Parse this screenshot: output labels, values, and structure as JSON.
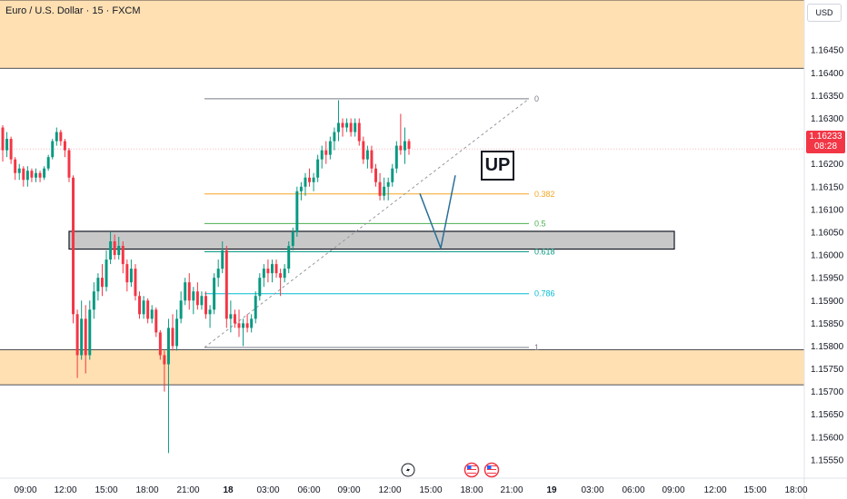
{
  "header": {
    "symbol": "Euro / U.S. Dollar · 15 · FXCM",
    "currency": "USD"
  },
  "last_price": {
    "value": "1.16233",
    "countdown": "08:28",
    "color": "#f23645"
  },
  "annotation_label": "UP",
  "event_icons": [
    "lightning-icon",
    "us-flag-icon",
    "us-flag-icon"
  ],
  "colors": {
    "up": "#089981",
    "down": "#f23645",
    "zone": "#ffe0b2",
    "fib_0382": "#f5a623",
    "fib_05": "#4caf50",
    "fib_0618": "#089981",
    "fib_0786": "#00bcd4",
    "fib_edge": "#787b86",
    "arrow": "#2a6f97"
  },
  "chart_data": {
    "type": "candlestick",
    "title": "Euro / U.S. Dollar · 15 · FXCM",
    "ylim": [
      1.1551,
      1.1656
    ],
    "y_ticks": [
      "1.16450",
      "1.16400",
      "1.16350",
      "1.16300",
      "1.16250",
      "1.16200",
      "1.16150",
      "1.16100",
      "1.16050",
      "1.16000",
      "1.15950",
      "1.15900",
      "1.15850",
      "1.15800",
      "1.15750",
      "1.15700",
      "1.15650",
      "1.15600",
      "1.15550"
    ],
    "x_ticks": [
      {
        "label": "09:00",
        "bold": false
      },
      {
        "label": "12:00",
        "bold": false
      },
      {
        "label": "15:00",
        "bold": false
      },
      {
        "label": "18:00",
        "bold": false
      },
      {
        "label": "21:00",
        "bold": false
      },
      {
        "label": "18",
        "bold": true
      },
      {
        "label": "03:00",
        "bold": false
      },
      {
        "label": "06:00",
        "bold": false
      },
      {
        "label": "09:00",
        "bold": false
      },
      {
        "label": "12:00",
        "bold": false
      },
      {
        "label": "15:00",
        "bold": false
      },
      {
        "label": "18:00",
        "bold": false
      },
      {
        "label": "21:00",
        "bold": false
      },
      {
        "label": "19",
        "bold": true
      },
      {
        "label": "03:00",
        "bold": false
      },
      {
        "label": "06:00",
        "bold": false
      },
      {
        "label": "09:00",
        "bold": false
      },
      {
        "label": "12:00",
        "bold": false
      },
      {
        "label": "15:00",
        "bold": false
      },
      {
        "label": "18:00",
        "bold": false
      }
    ],
    "zones": [
      {
        "name": "supply-zone",
        "y0": 1.1641,
        "y1": 1.1656
      },
      {
        "name": "demand-zone",
        "y0": 1.15715,
        "y1": 1.15792
      },
      {
        "name": "gray-zone",
        "y0": 1.16013,
        "y1": 1.16052
      }
    ],
    "fib_levels": [
      {
        "label": "0",
        "value": 1.16343
      },
      {
        "label": "0.382",
        "value": 1.16134
      },
      {
        "label": "0.5",
        "value": 1.16069
      },
      {
        "label": "0.618",
        "value": 1.16007
      },
      {
        "label": "0.786",
        "value": 1.15915
      },
      {
        "label": "1",
        "value": 1.15797
      }
    ],
    "projection_path": [
      [
        1.16135,
        0
      ],
      [
        1.16015,
        1
      ],
      [
        1.16175,
        2
      ]
    ],
    "candles": [
      [
        1.1628,
        1.16285,
        1.16205,
        1.1623
      ],
      [
        1.1623,
        1.1627,
        1.16215,
        1.16255
      ],
      [
        1.16255,
        1.1626,
        1.162,
        1.1621
      ],
      [
        1.1621,
        1.16215,
        1.16165,
        1.1618
      ],
      [
        1.1618,
        1.162,
        1.16165,
        1.1619
      ],
      [
        1.1619,
        1.16195,
        1.1615,
        1.16165
      ],
      [
        1.16165,
        1.16195,
        1.1615,
        1.16185
      ],
      [
        1.16185,
        1.1619,
        1.1616,
        1.1617
      ],
      [
        1.1617,
        1.1619,
        1.1616,
        1.1618
      ],
      [
        1.1618,
        1.16185,
        1.1616,
        1.1617
      ],
      [
        1.1617,
        1.16195,
        1.16165,
        1.1619
      ],
      [
        1.1619,
        1.1622,
        1.16185,
        1.16215
      ],
      [
        1.16215,
        1.16255,
        1.1621,
        1.1625
      ],
      [
        1.1625,
        1.1628,
        1.1624,
        1.1627
      ],
      [
        1.1627,
        1.16275,
        1.1624,
        1.1625
      ],
      [
        1.1625,
        1.16255,
        1.16215,
        1.1623
      ],
      [
        1.1623,
        1.16235,
        1.1616,
        1.1617
      ],
      [
        1.1617,
        1.16175,
        1.1585,
        1.1587
      ],
      [
        1.1587,
        1.1588,
        1.1573,
        1.1578
      ],
      [
        1.1578,
        1.159,
        1.1577,
        1.1586
      ],
      [
        1.1586,
        1.1589,
        1.1574,
        1.1578
      ],
      [
        1.1578,
        1.159,
        1.1577,
        1.1588
      ],
      [
        1.1588,
        1.1594,
        1.1586,
        1.1592
      ],
      [
        1.1592,
        1.1596,
        1.159,
        1.1595
      ],
      [
        1.1595,
        1.1598,
        1.1591,
        1.1593
      ],
      [
        1.1593,
        1.1601,
        1.1592,
        1.1599
      ],
      [
        1.1599,
        1.1605,
        1.1598,
        1.1603
      ],
      [
        1.1603,
        1.16045,
        1.1599,
        1.16
      ],
      [
        1.16,
        1.1604,
        1.1599,
        1.1602
      ],
      [
        1.1602,
        1.1603,
        1.1596,
        1.1598
      ],
      [
        1.1598,
        1.1599,
        1.1592,
        1.1594
      ],
      [
        1.1594,
        1.1599,
        1.1593,
        1.1597
      ],
      [
        1.1597,
        1.1598,
        1.159,
        1.1591
      ],
      [
        1.1591,
        1.1592,
        1.1586,
        1.1587
      ],
      [
        1.1587,
        1.1591,
        1.1586,
        1.159
      ],
      [
        1.159,
        1.15905,
        1.1585,
        1.1586
      ],
      [
        1.1586,
        1.1589,
        1.1585,
        1.1588
      ],
      [
        1.1588,
        1.15885,
        1.1582,
        1.1583
      ],
      [
        1.1583,
        1.15835,
        1.1577,
        1.1578
      ],
      [
        1.1578,
        1.1579,
        1.157,
        1.1576
      ],
      [
        1.1576,
        1.1586,
        1.15565,
        1.1584
      ],
      [
        1.1584,
        1.1587,
        1.1579,
        1.158
      ],
      [
        1.158,
        1.1588,
        1.1579,
        1.1586
      ],
      [
        1.1586,
        1.1592,
        1.1585,
        1.159
      ],
      [
        1.159,
        1.1595,
        1.1589,
        1.1594
      ],
      [
        1.1594,
        1.1596,
        1.1588,
        1.159
      ],
      [
        1.159,
        1.1593,
        1.1587,
        1.1592
      ],
      [
        1.1592,
        1.1594,
        1.1588,
        1.1589
      ],
      [
        1.1589,
        1.1592,
        1.1588,
        1.1591
      ],
      [
        1.1591,
        1.1592,
        1.1586,
        1.1587
      ],
      [
        1.1587,
        1.1589,
        1.1584,
        1.1588
      ],
      [
        1.1588,
        1.1596,
        1.1587,
        1.1595
      ],
      [
        1.1595,
        1.1599,
        1.1593,
        1.1597
      ],
      [
        1.1597,
        1.1603,
        1.1596,
        1.1601
      ],
      [
        1.1601,
        1.1602,
        1.1584,
        1.1586
      ],
      [
        1.1586,
        1.159,
        1.1583,
        1.1587
      ],
      [
        1.1587,
        1.1588,
        1.1584,
        1.1585
      ],
      [
        1.1585,
        1.1588,
        1.1582,
        1.1584
      ],
      [
        1.1584,
        1.1586,
        1.158,
        1.1585
      ],
      [
        1.1585,
        1.1587,
        1.1583,
        1.1584
      ],
      [
        1.1584,
        1.1587,
        1.1583,
        1.1586
      ],
      [
        1.1586,
        1.1592,
        1.1585,
        1.1591
      ],
      [
        1.1591,
        1.1596,
        1.159,
        1.1595
      ],
      [
        1.1595,
        1.1598,
        1.1593,
        1.1597
      ],
      [
        1.1597,
        1.1599,
        1.1594,
        1.1596
      ],
      [
        1.1596,
        1.1599,
        1.1594,
        1.1598
      ],
      [
        1.1598,
        1.1599,
        1.1595,
        1.1596
      ],
      [
        1.1596,
        1.1597,
        1.1591,
        1.1595
      ],
      [
        1.1595,
        1.1598,
        1.1594,
        1.1597
      ],
      [
        1.1597,
        1.1603,
        1.1596,
        1.1602
      ],
      [
        1.1602,
        1.1606,
        1.1601,
        1.1605
      ],
      [
        1.1605,
        1.1615,
        1.1604,
        1.1614
      ],
      [
        1.1614,
        1.1616,
        1.1612,
        1.1615
      ],
      [
        1.1615,
        1.1618,
        1.1613,
        1.1617
      ],
      [
        1.1617,
        1.1619,
        1.1615,
        1.1616
      ],
      [
        1.1616,
        1.1618,
        1.1614,
        1.1617
      ],
      [
        1.1617,
        1.1622,
        1.1616,
        1.1621
      ],
      [
        1.1621,
        1.1624,
        1.1619,
        1.1623
      ],
      [
        1.1623,
        1.1625,
        1.162,
        1.1622
      ],
      [
        1.1622,
        1.1626,
        1.1621,
        1.1625
      ],
      [
        1.1625,
        1.1628,
        1.1623,
        1.1627
      ],
      [
        1.1627,
        1.1634,
        1.1625,
        1.1629
      ],
      [
        1.1629,
        1.163,
        1.1626,
        1.1628
      ],
      [
        1.1628,
        1.163,
        1.1627,
        1.1629
      ],
      [
        1.1629,
        1.163,
        1.1626,
        1.1627
      ],
      [
        1.1627,
        1.163,
        1.1626,
        1.1629
      ],
      [
        1.1629,
        1.163,
        1.1624,
        1.1625
      ],
      [
        1.1625,
        1.1626,
        1.162,
        1.1621
      ],
      [
        1.1621,
        1.1624,
        1.1619,
        1.1623
      ],
      [
        1.1623,
        1.1624,
        1.1618,
        1.1619
      ],
      [
        1.1619,
        1.162,
        1.1615,
        1.1616
      ],
      [
        1.1616,
        1.1618,
        1.1612,
        1.1613
      ],
      [
        1.1613,
        1.1617,
        1.1612,
        1.1615
      ],
      [
        1.1615,
        1.1617,
        1.1612,
        1.1616
      ],
      [
        1.1616,
        1.162,
        1.1615,
        1.1619
      ],
      [
        1.1619,
        1.1625,
        1.1618,
        1.1624
      ],
      [
        1.1624,
        1.1631,
        1.1622,
        1.1623
      ],
      [
        1.1623,
        1.1628,
        1.162,
        1.1625
      ],
      [
        1.1625,
        1.16255,
        1.1622,
        1.16233
      ]
    ]
  }
}
